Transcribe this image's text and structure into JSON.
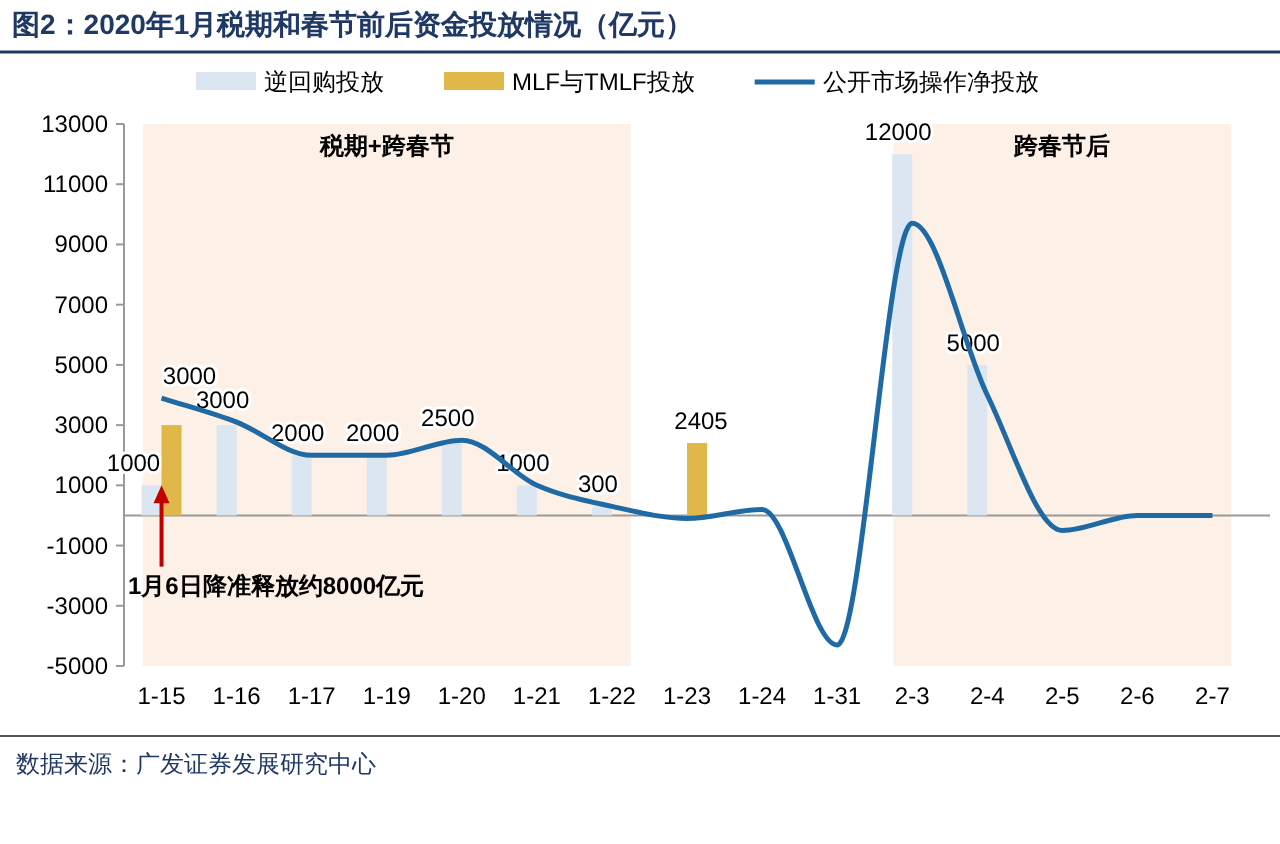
{
  "chart_data": {
    "type": "bar",
    "title": "图2：2020年1月税期和春节前后资金投放情况（亿元）",
    "categories": [
      "1-15",
      "1-16",
      "1-17",
      "1-19",
      "1-20",
      "1-21",
      "1-22",
      "1-23",
      "1-24",
      "1-31",
      "2-3",
      "2-4",
      "2-5",
      "2-6",
      "2-7"
    ],
    "series": [
      {
        "name": "逆回购投放",
        "color": "#dce6f2",
        "values": [
          1000,
          3000,
          2000,
          2000,
          2500,
          1000,
          300,
          null,
          null,
          null,
          12000,
          5000,
          null,
          null,
          null
        ],
        "value_labels": [
          "1000",
          "3000",
          "2000",
          "2000",
          "2500",
          "1000",
          "300",
          null,
          null,
          null,
          "12000",
          "5000",
          null,
          null,
          null
        ]
      },
      {
        "name": "MLF与TMLF投放",
        "color": "#e0b84a",
        "values": [
          3000,
          null,
          null,
          null,
          null,
          null,
          null,
          2405,
          null,
          null,
          null,
          null,
          null,
          null,
          null
        ],
        "value_labels": [
          "3000",
          null,
          null,
          null,
          null,
          null,
          null,
          "2405",
          null,
          null,
          null,
          null,
          null,
          null,
          null
        ]
      },
      {
        "name": "公开市场操作净投放",
        "type": "line",
        "color": "#1f6aa5",
        "values": [
          3900,
          3100,
          2000,
          2000,
          2500,
          1000,
          300,
          -100,
          200,
          -4300,
          9700,
          4000,
          -500,
          0,
          0
        ]
      }
    ],
    "ylim": [
      -5000,
      13000
    ],
    "yticks": [
      -5000,
      -3000,
      -1000,
      1000,
      3000,
      5000,
      7000,
      9000,
      11000,
      13000
    ],
    "bands": [
      {
        "axis": "x",
        "from": "1-15",
        "to": "1-22",
        "label": "税期+跨春节",
        "color": "#fdf0e6"
      },
      {
        "axis": "x",
        "from": "2-3",
        "to": "2-7",
        "label": "跨春节后",
        "color": "#fdf0e6"
      }
    ],
    "annotations": [
      {
        "text": "1月6日降准释放约8000亿元",
        "x": "1-15",
        "y": 1000
      },
      "数据来源：广发证券发展研究中心"
    ],
    "legend": "top",
    "grid": false,
    "marker": "none",
    "line_style": "solid"
  }
}
